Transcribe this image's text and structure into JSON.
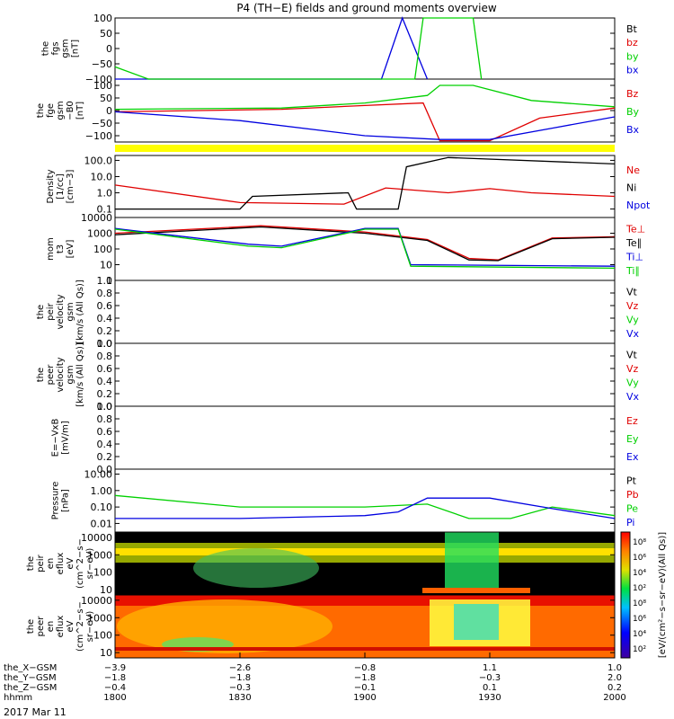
{
  "title": "P4 (TH−E) fields and ground moments overview",
  "date_label": "2017 Mar 11",
  "colors": {
    "black": "#000000",
    "red": "#e00000",
    "green": "#00d000",
    "blue": "#0000e0",
    "yellow": "#ffff00"
  },
  "panels": [
    {
      "id": "fgs",
      "ylabel": [
        "the",
        "fgs",
        "gsm",
        "[nT]"
      ],
      "yticks": [
        "100",
        "50",
        "0",
        "−50",
        "−100"
      ],
      "legend": [
        {
          "text": "Bt",
          "color": "#000000"
        },
        {
          "text": "bz",
          "color": "#e00000"
        },
        {
          "text": "by",
          "color": "#00d000"
        },
        {
          "text": "bx",
          "color": "#0000e0"
        }
      ]
    },
    {
      "id": "fge",
      "ylabel": [
        "the",
        "fge",
        "gsm",
        "−B0",
        "[nT]"
      ],
      "yticks": [
        "100",
        "50",
        "0",
        "−50",
        "−100"
      ],
      "legend": [
        {
          "text": "Bz",
          "color": "#e00000"
        },
        {
          "text": "By",
          "color": "#00d000"
        },
        {
          "text": "Bx",
          "color": "#0000e0"
        }
      ]
    },
    {
      "id": "density",
      "ylabel": [
        "Density",
        "[1/cc]",
        "[cm−3]"
      ],
      "yticks": [
        "100.0",
        "10.0",
        "1.0",
        "0.1"
      ],
      "legend": [
        {
          "text": "Ne",
          "color": "#e00000"
        },
        {
          "text": "Ni",
          "color": "#000000"
        },
        {
          "text": "Npot",
          "color": "#0000e0"
        }
      ]
    },
    {
      "id": "temp",
      "ylabel": [
        "mom",
        "t3",
        "[eV]"
      ],
      "yticks": [
        "10000",
        "1000",
        "100",
        "10",
        "1"
      ],
      "legend": [
        {
          "text": "Te⊥",
          "color": "#e00000"
        },
        {
          "text": "Te∥",
          "color": "#000000"
        },
        {
          "text": "Ti⊥",
          "color": "#0000e0"
        },
        {
          "text": "Ti∥",
          "color": "#00d000"
        }
      ]
    },
    {
      "id": "peirv",
      "ylabel": [
        "the",
        "peir",
        "velocity",
        "gsm",
        "[km/s (All Qs)]"
      ],
      "yticks": [
        "1.0",
        "0.8",
        "0.6",
        "0.4",
        "0.2",
        "0.0"
      ],
      "legend": [
        {
          "text": "Vt",
          "color": "#000000"
        },
        {
          "text": "Vz",
          "color": "#e00000"
        },
        {
          "text": "Vy",
          "color": "#00d000"
        },
        {
          "text": "Vx",
          "color": "#0000e0"
        }
      ]
    },
    {
      "id": "peerv",
      "ylabel": [
        "the",
        "peer",
        "velocity",
        "gsm",
        "[km/s (All Qs)]"
      ],
      "yticks": [
        "1.0",
        "0.8",
        "0.6",
        "0.4",
        "0.2",
        "0.0"
      ],
      "legend": [
        {
          "text": "Vt",
          "color": "#000000"
        },
        {
          "text": "Vz",
          "color": "#e00000"
        },
        {
          "text": "Vy",
          "color": "#00d000"
        },
        {
          "text": "Vx",
          "color": "#0000e0"
        }
      ]
    },
    {
      "id": "efield",
      "ylabel": [
        "E=−VxB",
        "[mV/m]"
      ],
      "yticks": [
        "1.0",
        "0.8",
        "0.6",
        "0.4",
        "0.2",
        "0.0"
      ],
      "legend": [
        {
          "text": "Ez",
          "color": "#e00000"
        },
        {
          "text": "Ey",
          "color": "#00d000"
        },
        {
          "text": "Ex",
          "color": "#0000e0"
        }
      ]
    },
    {
      "id": "pressure",
      "ylabel": [
        "Pressure",
        "[nPa]"
      ],
      "yticks": [
        "10.00",
        "1.00",
        "0.10",
        "0.01"
      ],
      "legend": [
        {
          "text": "Pt",
          "color": "#000000"
        },
        {
          "text": "Pb",
          "color": "#e00000"
        },
        {
          "text": "Pe",
          "color": "#00d000"
        },
        {
          "text": "Pi",
          "color": "#0000e0"
        }
      ]
    },
    {
      "id": "peir_en",
      "ylabel": [
        "the",
        "peir",
        "en",
        "eflux",
        "eV",
        "(cm^2−s−",
        "sr−eV)"
      ],
      "yticks": [
        "10000",
        "1000",
        "100",
        "10"
      ]
    },
    {
      "id": "peer_en",
      "ylabel": [
        "the",
        "peer",
        "en",
        "eflux",
        "eV",
        "(cm^2−s−",
        "sr−eV)"
      ],
      "yticks": [
        "10000",
        "1000",
        "100",
        "10"
      ]
    }
  ],
  "colorbar": {
    "label": "[eV/(cm²−s−sr−eV)]",
    "label_ions": "[eV/(cm²−s−sr−eV)(All Qs)]",
    "ticks_top": [
      "10⁸",
      "10⁶",
      "10⁴",
      "10²"
    ],
    "ticks_bottom": [
      "10⁸",
      "10⁶",
      "10⁴",
      "10²"
    ]
  },
  "xaxis": {
    "row_labels": [
      "the_X−GSM",
      "the_Y−GSM",
      "the_Z−GSM",
      "hhmm"
    ],
    "ticks": [
      {
        "x": "−3.9",
        "y": "−1.8",
        "z": "−0.4",
        "t": "1800"
      },
      {
        "x": "−2.6",
        "y": "−1.8",
        "z": "−0.3",
        "t": "1830"
      },
      {
        "x": "−0.8",
        "y": "−1.8",
        "z": "−0.1",
        "t": "1900"
      },
      {
        "x": "1.1",
        "y": "−0.3",
        "z": "0.1",
        "t": "1930"
      },
      {
        "x": "1.0",
        "y": "2.0",
        "z": "0.2",
        "t": "2000"
      }
    ]
  },
  "chart_data": {
    "type": "line",
    "x_range": [
      "1800",
      "2000"
    ],
    "series": [
      {
        "panel": "fgs",
        "name": "bx",
        "x": [
          "1800",
          "1904",
          "1909",
          "1915"
        ],
        "values": [
          -100,
          -100,
          100,
          -100
        ]
      },
      {
        "panel": "fgs",
        "name": "by",
        "x": [
          "1800",
          "1808",
          "1912",
          "1914",
          "1926",
          "1928"
        ],
        "values": [
          -60,
          -100,
          -100,
          100,
          100,
          -100
        ]
      },
      {
        "panel": "fge",
        "name": "Bz",
        "x": [
          "1800",
          "1840",
          "1900",
          "1914",
          "1918",
          "1930",
          "1942",
          "2000"
        ],
        "values": [
          -5,
          5,
          20,
          30,
          -120,
          -120,
          -30,
          10
        ]
      },
      {
        "panel": "fge",
        "name": "By",
        "x": [
          "1800",
          "1840",
          "1900",
          "1915",
          "1918",
          "1926",
          "1940",
          "2000"
        ],
        "values": [
          5,
          10,
          30,
          60,
          100,
          100,
          40,
          15
        ]
      },
      {
        "panel": "fge",
        "name": "Bx",
        "x": [
          "1800",
          "1830",
          "1900",
          "1918",
          "1930",
          "1945",
          "2000"
        ],
        "values": [
          -5,
          -40,
          -100,
          -115,
          -115,
          -70,
          -25
        ]
      },
      {
        "panel": "density",
        "name": "Ne",
        "x": [
          "1800",
          "1830",
          "1855",
          "1905",
          "1920",
          "1930",
          "1940",
          "2000"
        ],
        "values": [
          3,
          0.25,
          0.2,
          2,
          1,
          1.8,
          1,
          0.6
        ]
      },
      {
        "panel": "density",
        "name": "Ni",
        "x": [
          "1800",
          "1830",
          "1833",
          "1856",
          "1858",
          "1908",
          "1910",
          "1920",
          "2000"
        ],
        "values": [
          0.1,
          0.1,
          0.6,
          1,
          0.1,
          0.1,
          40,
          150,
          60
        ]
      },
      {
        "panel": "temp",
        "name": "Te⊥",
        "x": [
          "1800",
          "1835",
          "1900",
          "1915",
          "1925",
          "1932",
          "1945",
          "2000"
        ],
        "values": [
          1000,
          3000,
          1200,
          400,
          25,
          20,
          500,
          600
        ]
      },
      {
        "panel": "temp",
        "name": "Te∥",
        "x": [
          "1800",
          "1835",
          "1900",
          "1915",
          "1925",
          "1932",
          "1945",
          "2000"
        ],
        "values": [
          800,
          2500,
          1000,
          350,
          20,
          18,
          450,
          550
        ]
      },
      {
        "panel": "temp",
        "name": "Ti⊥",
        "x": [
          "1800",
          "1832",
          "1840",
          "1900",
          "1908",
          "1911",
          "2000"
        ],
        "values": [
          2000,
          200,
          150,
          2000,
          2000,
          10,
          8
        ]
      },
      {
        "panel": "temp",
        "name": "Ti∥",
        "x": [
          "1800",
          "1832",
          "1840",
          "1900",
          "1908",
          "1911",
          "2000"
        ],
        "values": [
          1800,
          150,
          120,
          1800,
          1800,
          8,
          6
        ]
      },
      {
        "panel": "pressure",
        "name": "Pe",
        "x": [
          "1800",
          "1830",
          "1900",
          "1915",
          "1925",
          "1935",
          "1945",
          "2000"
        ],
        "values": [
          0.5,
          0.1,
          0.1,
          0.15,
          0.02,
          0.02,
          0.1,
          0.03
        ]
      },
      {
        "panel": "pressure",
        "name": "Pi",
        "x": [
          "1800",
          "1830",
          "1900",
          "1908",
          "1915",
          "1930",
          "1945",
          "2000"
        ],
        "values": [
          0.02,
          0.02,
          0.03,
          0.05,
          0.35,
          0.35,
          0.08,
          0.02
        ]
      }
    ]
  }
}
